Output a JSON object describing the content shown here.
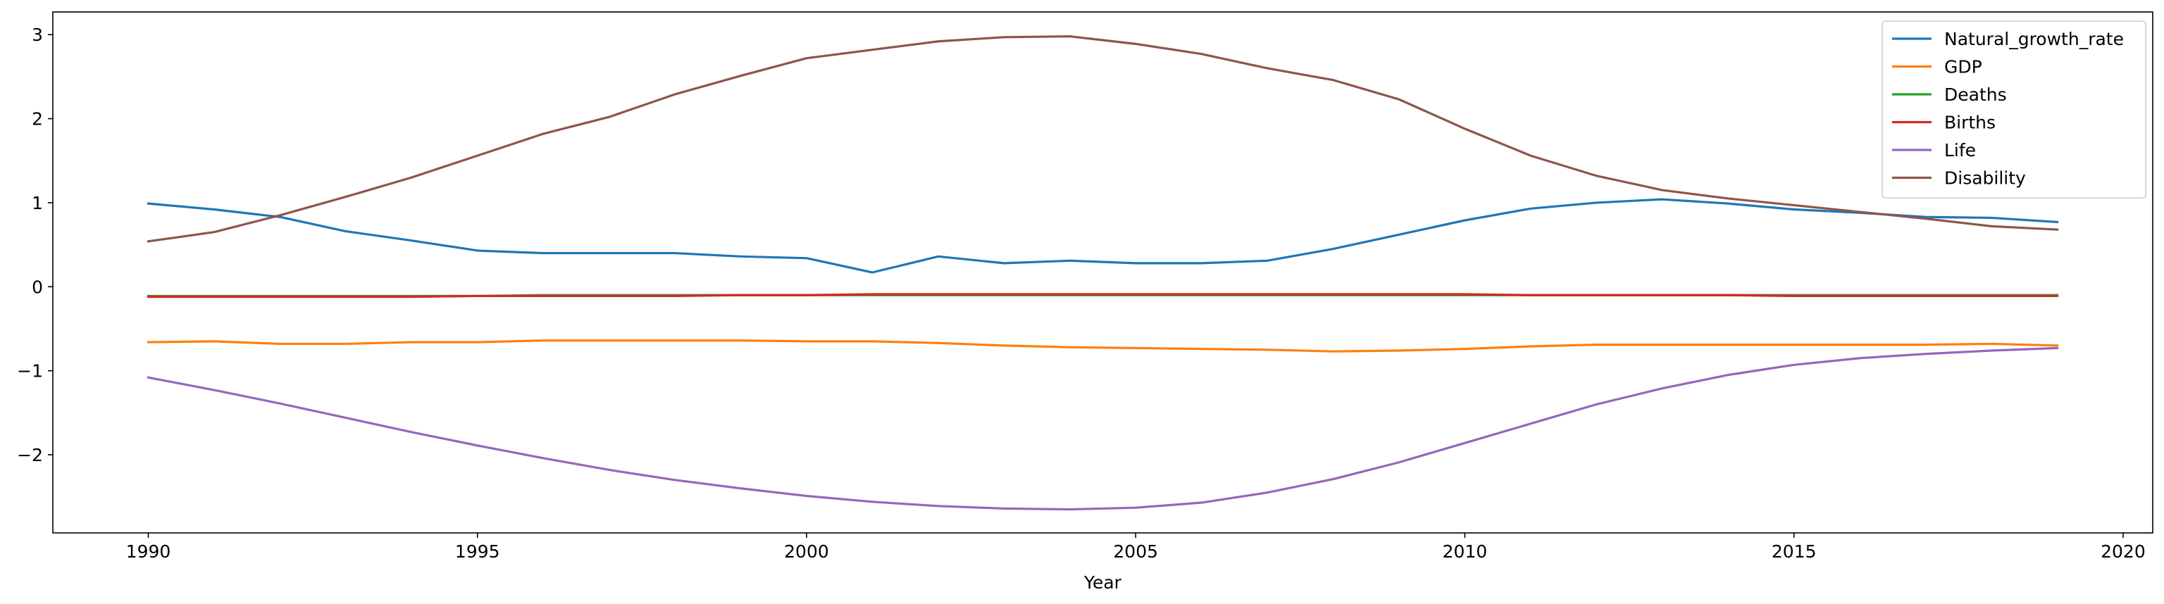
{
  "chart_data": {
    "type": "line",
    "title": "",
    "xlabel": "Year",
    "ylabel": "",
    "xlim": [
      1988.55,
      2020.45
    ],
    "ylim": [
      -2.93,
      3.27
    ],
    "xticks": [
      1990,
      1995,
      2000,
      2005,
      2010,
      2015,
      2020
    ],
    "yticks": [
      -2,
      -1,
      0,
      1,
      2,
      3
    ],
    "ytick_labels": [
      "−2",
      "−1",
      "0",
      "1",
      "2",
      "3"
    ],
    "grid": false,
    "legend_position": "top-right",
    "x": [
      1990,
      1991,
      1992,
      1993,
      1994,
      1995,
      1996,
      1997,
      1998,
      1999,
      2000,
      2001,
      2002,
      2003,
      2004,
      2005,
      2006,
      2007,
      2008,
      2009,
      2010,
      2011,
      2012,
      2013,
      2014,
      2015,
      2016,
      2017,
      2018,
      2019
    ],
    "series": [
      {
        "name": "Natural_growth_rate",
        "color": "#1f77b4",
        "values": [
          0.99,
          0.92,
          0.83,
          0.66,
          0.55,
          0.43,
          0.4,
          0.4,
          0.4,
          0.36,
          0.34,
          0.17,
          0.36,
          0.28,
          0.31,
          0.28,
          0.28,
          0.31,
          0.45,
          0.62,
          0.79,
          0.93,
          1.0,
          1.04,
          0.99,
          0.92,
          0.88,
          0.83,
          0.82,
          0.77
        ]
      },
      {
        "name": "GDP",
        "color": "#ff7f0e",
        "values": [
          -0.66,
          -0.65,
          -0.68,
          -0.68,
          -0.66,
          -0.66,
          -0.64,
          -0.64,
          -0.64,
          -0.64,
          -0.65,
          -0.65,
          -0.67,
          -0.7,
          -0.72,
          -0.73,
          -0.74,
          -0.75,
          -0.77,
          -0.76,
          -0.74,
          -0.71,
          -0.69,
          -0.69,
          -0.69,
          -0.69,
          -0.69,
          -0.69,
          -0.68,
          -0.7
        ]
      },
      {
        "name": "Deaths",
        "color": "#2ca02c",
        "values": [
          -0.11,
          -0.11,
          -0.11,
          -0.11,
          -0.11,
          -0.11,
          -0.1,
          -0.1,
          -0.1,
          -0.1,
          -0.1,
          -0.1,
          -0.1,
          -0.1,
          -0.1,
          -0.1,
          -0.1,
          -0.1,
          -0.1,
          -0.1,
          -0.1,
          -0.1,
          -0.1,
          -0.1,
          -0.1,
          -0.1,
          -0.1,
          -0.1,
          -0.1,
          -0.1
        ]
      },
      {
        "name": "Births",
        "color": "#d62728",
        "values": [
          -0.12,
          -0.12,
          -0.12,
          -0.12,
          -0.12,
          -0.11,
          -0.11,
          -0.11,
          -0.11,
          -0.1,
          -0.1,
          -0.09,
          -0.09,
          -0.09,
          -0.09,
          -0.09,
          -0.09,
          -0.09,
          -0.09,
          -0.09,
          -0.09,
          -0.1,
          -0.1,
          -0.1,
          -0.1,
          -0.11,
          -0.11,
          -0.11,
          -0.11,
          -0.11
        ]
      },
      {
        "name": "Life",
        "color": "#9467bd",
        "values": [
          -1.08,
          -1.23,
          -1.39,
          -1.56,
          -1.73,
          -1.89,
          -2.04,
          -2.18,
          -2.3,
          -2.4,
          -2.49,
          -2.56,
          -2.61,
          -2.64,
          -2.65,
          -2.63,
          -2.57,
          -2.45,
          -2.29,
          -2.09,
          -1.86,
          -1.63,
          -1.4,
          -1.21,
          -1.05,
          -0.93,
          -0.85,
          -0.8,
          -0.76,
          -0.73
        ]
      },
      {
        "name": "Disability",
        "color": "#8c564b",
        "values": [
          0.54,
          0.65,
          0.85,
          1.07,
          1.3,
          1.56,
          1.82,
          2.02,
          2.29,
          2.51,
          2.72,
          2.82,
          2.92,
          2.97,
          2.98,
          2.89,
          2.77,
          2.6,
          2.46,
          2.23,
          1.88,
          1.56,
          1.32,
          1.15,
          1.05,
          0.97,
          0.89,
          0.81,
          0.72,
          0.68
        ]
      }
    ]
  }
}
